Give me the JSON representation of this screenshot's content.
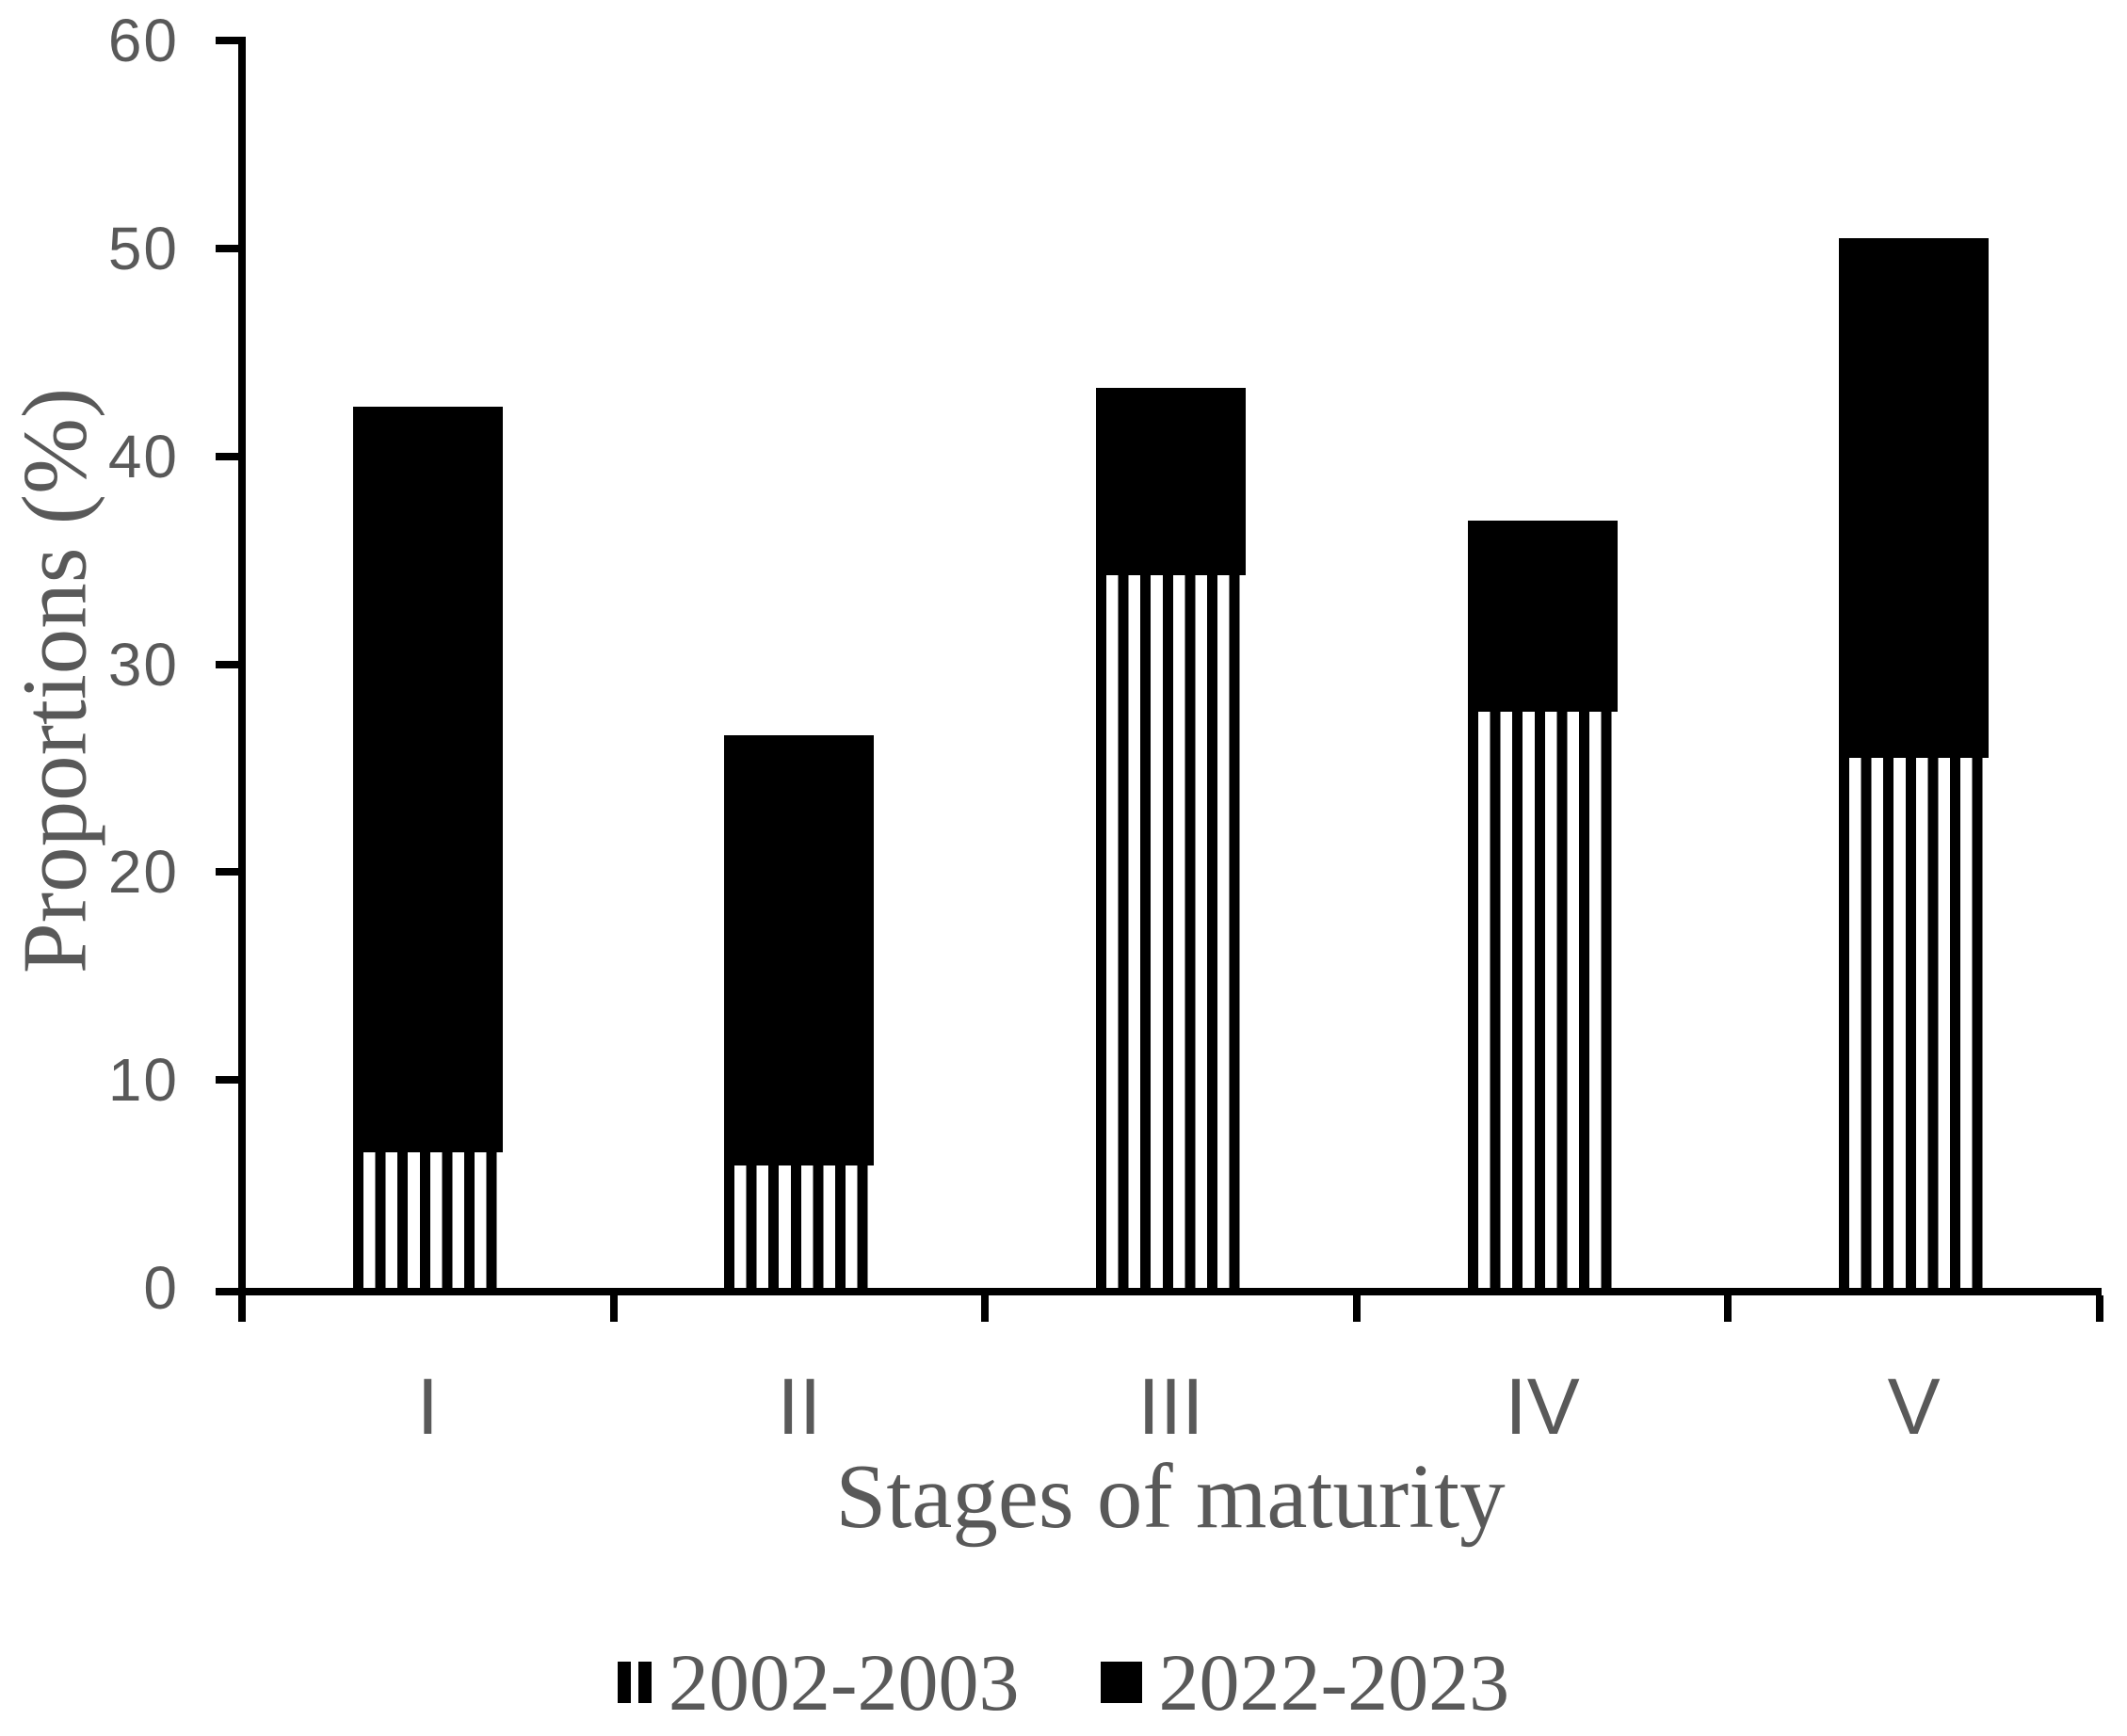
{
  "figure": {
    "y_axis_title": "Proportions (%)",
    "x_axis_title": "Stages of maturity"
  },
  "colors": {
    "bar_fill": "#000000",
    "axis": "#000000",
    "text_gray": "#595959",
    "background": "#ffffff"
  },
  "legend": {
    "items": [
      {
        "label": "2002-2003",
        "swatch": "vertical-stripes"
      },
      {
        "label": "2022-2023",
        "swatch": "solid-black"
      }
    ]
  },
  "chart_data": {
    "type": "bar",
    "stacked": true,
    "categories": [
      "I",
      "II",
      "III",
      "IV",
      "V"
    ],
    "series": [
      {
        "name": "2002-2003",
        "style": "vertical-stripes",
        "values": [
          6.5,
          5.9,
          34.3,
          27.7,
          25.5
        ]
      },
      {
        "name": "2022-2023",
        "style": "solid",
        "values": [
          35.9,
          20.7,
          9.0,
          9.2,
          25.0
        ]
      }
    ],
    "stack_totals": [
      42.4,
      26.6,
      43.3,
      36.9,
      50.5
    ],
    "title": "",
    "xlabel": "Stages of maturity",
    "ylabel": "Proportions (%)",
    "ylim": [
      0,
      60
    ],
    "y_ticks": [
      0,
      10,
      20,
      30,
      40,
      50,
      60
    ],
    "grid": false,
    "legend_position": "bottom"
  }
}
